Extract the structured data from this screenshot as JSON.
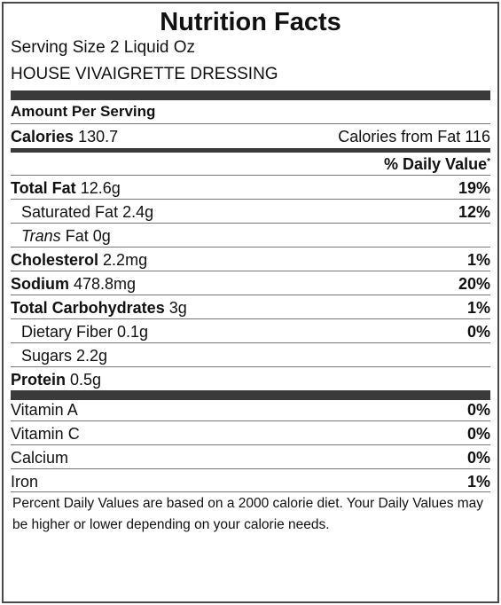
{
  "title": "Nutrition Facts",
  "serving_size": "Serving Size 2 Liquid Oz",
  "product_name": "HOUSE VIVAIGRETTE DRESSING",
  "amount_per_serving": "Amount Per Serving",
  "calories": {
    "label": "Calories",
    "value": "130.7"
  },
  "calories_from_fat": "Calories from Fat 116",
  "daily_value_header": "% Daily Value",
  "daily_value_mark": "*",
  "nutrients": {
    "total_fat": {
      "label": "Total Fat",
      "amount": "12.6g",
      "dv": "19%"
    },
    "saturated_fat": {
      "label": "Saturated Fat 2.4g",
      "dv": "12%"
    },
    "trans_fat": {
      "label": "Trans",
      "suffix": "Fat 0g"
    },
    "cholesterol": {
      "label": "Cholesterol",
      "amount": "2.2mg",
      "dv": "1%"
    },
    "sodium": {
      "label": "Sodium",
      "amount": "478.8mg",
      "dv": "20%"
    },
    "total_carbs": {
      "label": "Total Carbohydrates",
      "amount": "3g",
      "dv": "1%"
    },
    "dietary_fiber": {
      "label": "Dietary Fiber 0.1g",
      "dv": "0%"
    },
    "sugars": {
      "label": "Sugars 2.2g"
    },
    "protein": {
      "label": "Protein",
      "amount": "0.5g"
    }
  },
  "vitamins": [
    {
      "label": "Vitamin A",
      "dv": "0%"
    },
    {
      "label": "Vitamin C",
      "dv": "0%"
    },
    {
      "label": "Calcium",
      "dv": "0%"
    },
    {
      "label": "Iron",
      "dv": "1%"
    }
  ],
  "footnote": "Percent Daily Values are based on a 2000 calorie diet. Your Daily Values may be higher or lower depending on your calorie needs."
}
